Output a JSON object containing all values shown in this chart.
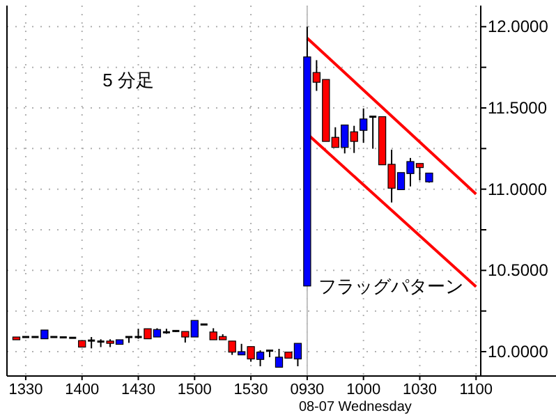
{
  "chart_data": {
    "type": "candlestick",
    "categories": [
      null,
      "1330",
      null,
      null,
      null,
      null,
      null,
      "1400",
      null,
      null,
      null,
      null,
      null,
      "1430",
      null,
      null,
      null,
      null,
      null,
      "1500",
      null,
      null,
      null,
      null,
      null,
      "1530",
      null,
      null,
      null,
      null,
      null,
      "0930",
      null,
      null,
      null,
      null,
      null,
      "1000",
      null,
      null,
      null,
      null,
      null,
      "1030",
      null,
      null,
      null,
      null,
      null,
      "1100"
    ],
    "ohlc": [
      [
        10.09,
        10.09,
        10.073,
        10.073
      ],
      [
        10.09,
        10.09,
        10.09,
        10.09
      ],
      [
        10.09,
        10.09,
        10.09,
        10.09
      ],
      [
        10.079,
        10.133,
        10.079,
        10.133
      ],
      [
        10.09,
        10.09,
        10.09,
        10.09
      ],
      [
        10.088,
        10.088,
        10.088,
        10.088
      ],
      [
        10.085,
        10.085,
        10.085,
        10.085
      ],
      [
        10.068,
        10.068,
        10.028,
        10.028
      ],
      [
        10.068,
        10.09,
        10.02,
        10.068
      ],
      [
        10.062,
        10.076,
        10.028,
        10.062
      ],
      [
        10.065,
        10.076,
        10.028,
        10.051
      ],
      [
        10.045,
        10.073,
        10.045,
        10.073
      ],
      [
        10.09,
        10.09,
        10.054,
        10.09
      ],
      [
        10.09,
        10.141,
        10.079,
        10.09
      ],
      [
        10.141,
        10.141,
        10.079,
        10.079
      ],
      [
        10.09,
        10.144,
        10.09,
        10.136
      ],
      [
        10.119,
        10.141,
        10.11,
        10.119
      ],
      [
        10.127,
        10.133,
        10.121,
        10.127
      ],
      [
        10.124,
        10.124,
        10.056,
        10.09
      ],
      [
        10.09,
        10.192,
        10.09,
        10.192
      ],
      [
        10.167,
        10.167,
        10.167,
        10.167
      ],
      [
        10.121,
        10.144,
        10.073,
        10.073
      ],
      [
        10.093,
        10.107,
        10.073,
        10.073
      ],
      [
        10.065,
        10.065,
        9.98,
        9.997
      ],
      [
        9.98,
        10.048,
        9.98,
        10.0
      ],
      [
        10.031,
        10.031,
        9.938,
        9.955
      ],
      [
        9.952,
        10.008,
        9.91,
        9.997
      ],
      [
        10.006,
        10.006,
        9.966,
        10.006
      ],
      [
        9.904,
        10.017,
        9.904,
        9.966
      ],
      [
        9.997,
        9.997,
        9.96,
        9.96
      ],
      [
        9.955,
        10.051,
        9.91,
        10.051
      ],
      [
        10.404,
        12.0,
        10.404,
        11.814
      ],
      [
        11.718,
        11.794,
        11.605,
        11.658
      ],
      [
        11.675,
        11.675,
        11.294,
        11.294
      ],
      [
        11.319,
        11.381,
        11.257,
        11.257
      ],
      [
        11.257,
        11.395,
        11.22,
        11.395
      ],
      [
        11.353,
        11.39,
        11.223,
        11.294
      ],
      [
        11.362,
        11.497,
        11.285,
        11.432
      ],
      [
        11.446,
        11.446,
        11.249,
        11.446
      ],
      [
        11.446,
        11.446,
        11.15,
        11.15
      ],
      [
        11.153,
        11.243,
        10.918,
        11.006
      ],
      [
        10.997,
        11.102,
        10.997,
        11.102
      ],
      [
        11.096,
        11.192,
        11.017,
        11.17
      ],
      [
        11.158,
        11.158,
        11.054,
        11.133
      ],
      [
        11.045,
        11.099,
        11.04,
        11.099
      ],
      null,
      null,
      null,
      null,
      null
    ],
    "colors": [
      "#ff0000",
      "#000000",
      "#000000",
      "#0000ff",
      "#000000",
      "#000000",
      "#000000",
      "#ff0000",
      "#000000",
      "#000000",
      "#ff0000",
      "#0000ff",
      "#000000",
      "#000000",
      "#ff0000",
      "#0000ff",
      "#000000",
      "#000000",
      "#ff0000",
      "#0000ff",
      "#000000",
      "#ff0000",
      "#ff0000",
      "#ff0000",
      "#0000ff",
      "#ff0000",
      "#0000ff",
      "#000000",
      "#0000ff",
      "#ff0000",
      "#0000ff",
      "#0000ff",
      "#ff0000",
      "#ff0000",
      "#ff0000",
      "#0000ff",
      "#ff0000",
      "#0000ff",
      "#000000",
      "#ff0000",
      "#ff0000",
      "#0000ff",
      "#0000ff",
      "#ff0000",
      "#0000ff",
      null,
      null,
      null,
      null,
      null
    ],
    "series": [
      {
        "type": "line",
        "values": [
          null,
          null,
          null,
          null,
          null,
          null,
          null,
          null,
          null,
          null,
          null,
          null,
          null,
          null,
          null,
          null,
          null,
          null,
          null,
          null,
          null,
          null,
          null,
          null,
          null,
          null,
          null,
          null,
          null,
          null,
          null,
          11.93,
          null,
          null,
          null,
          null,
          null,
          null,
          null,
          null,
          null,
          null,
          null,
          null,
          null,
          null,
          null,
          null,
          null,
          10.97
        ],
        "color": "#ff0000"
      },
      {
        "type": "line",
        "values": [
          null,
          null,
          null,
          null,
          null,
          null,
          null,
          null,
          null,
          null,
          null,
          null,
          null,
          null,
          null,
          null,
          null,
          null,
          null,
          null,
          null,
          null,
          null,
          null,
          null,
          null,
          null,
          null,
          null,
          null,
          null,
          11.34,
          null,
          null,
          null,
          null,
          null,
          null,
          null,
          null,
          null,
          null,
          null,
          null,
          null,
          null,
          null,
          null,
          null,
          10.4
        ],
        "color": "#ff0000"
      }
    ],
    "ylim": [
      9.85,
      12.13
    ],
    "yticks": [
      {
        "value": 10.0,
        "label": "10.0000"
      },
      {
        "value": 10.25,
        "label": null
      },
      {
        "value": 10.5,
        "label": "10.5000"
      },
      {
        "value": 10.75,
        "label": null
      },
      {
        "value": 11.0,
        "label": "11.0000"
      },
      {
        "value": 11.25,
        "label": null
      },
      {
        "value": 11.5,
        "label": "11.5000"
      },
      {
        "value": 11.75,
        "label": null
      },
      {
        "value": 12.0,
        "label": "12.0000"
      }
    ],
    "grid": true,
    "ref_lines": [
      {
        "axis": "x",
        "value": "0930",
        "color": "#c0c0c0"
      }
    ],
    "annotations": [
      "5 分足",
      "フラッグパターン",
      "08-07 Wednesday"
    ]
  }
}
